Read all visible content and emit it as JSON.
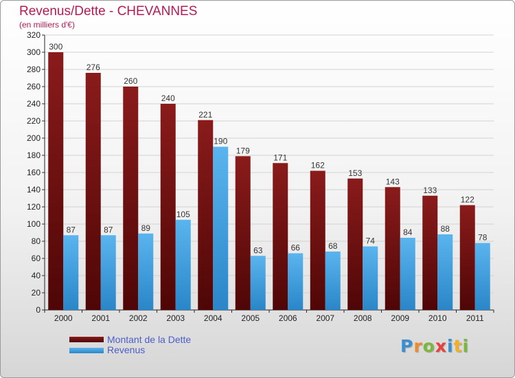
{
  "header": {
    "title": "Revenus/Dette - CHEVANNES",
    "subtitle": "(en milliers d'€)"
  },
  "legend": {
    "dette_label": "Montant de la Dette",
    "revenus_label": "Revenus"
  },
  "logo": {
    "text": "Proxiti",
    "letters": [
      {
        "ch": "P",
        "color": "#3a8fd0"
      },
      {
        "ch": "r",
        "color": "#f08a2a"
      },
      {
        "ch": "o",
        "color": "#7ab83a"
      },
      {
        "ch": "x",
        "color": "#e8403a"
      },
      {
        "ch": "i",
        "color": "#3a8fd0"
      },
      {
        "ch": "t",
        "color": "#f0b02a"
      },
      {
        "ch": "i",
        "color": "#7ab83a"
      }
    ]
  },
  "colors": {
    "title": "#b51a55",
    "dette_top": "#8a1b1b",
    "dette_bottom": "#4f0606",
    "revenus_top": "#5ab4ee",
    "revenus_bottom": "#2a86c8",
    "legend_text": "#4a5ec8"
  },
  "chart_data": {
    "type": "bar",
    "title": "Revenus/Dette - CHEVANNES",
    "subtitle": "(en milliers d'€)",
    "xlabel": "",
    "ylabel": "",
    "ylim": [
      0,
      320
    ],
    "yticks": [
      0,
      20,
      40,
      60,
      80,
      100,
      120,
      140,
      160,
      180,
      200,
      220,
      240,
      260,
      280,
      300,
      320
    ],
    "grid": true,
    "categories": [
      "2000",
      "2001",
      "2002",
      "2003",
      "2004",
      "2005",
      "2006",
      "2007",
      "2008",
      "2009",
      "2010",
      "2011"
    ],
    "series": [
      {
        "name": "Montant de la Dette",
        "values": [
          300,
          276,
          260,
          240,
          221,
          179,
          171,
          162,
          153,
          143,
          133,
          122
        ]
      },
      {
        "name": "Revenus",
        "values": [
          87,
          87,
          89,
          105,
          190,
          63,
          66,
          68,
          74,
          84,
          88,
          78
        ]
      }
    ],
    "legend_position": "bottom-left"
  }
}
